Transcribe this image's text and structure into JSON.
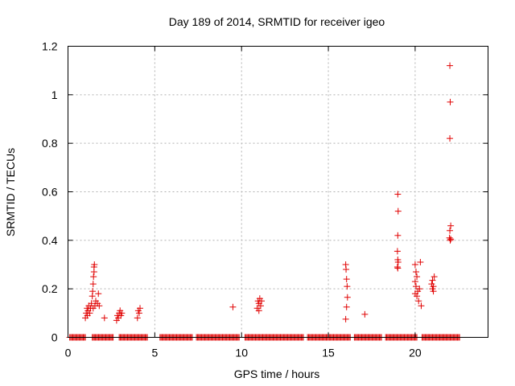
{
  "chart_data": {
    "type": "scatter",
    "title": "Day 189 of 2014, SRMTID for receiver igeo",
    "xlabel": "GPS time / hours",
    "ylabel": "SRMTID / TECUs",
    "xlim": [
      0,
      24.2
    ],
    "ylim": [
      0,
      1.2
    ],
    "xticks": [
      0,
      5,
      10,
      15,
      20
    ],
    "xtick_labels": [
      "0",
      "5",
      "10",
      "15",
      "20"
    ],
    "yticks": [
      0,
      0.2,
      0.4,
      0.6,
      0.8,
      1.0,
      1.2
    ],
    "ytick_labels": [
      "0",
      "0.2",
      "0.4",
      "0.6",
      "0.8",
      "1",
      "1.2"
    ],
    "grid": true,
    "marker": "+",
    "color": "#e00000",
    "series": [
      {
        "name": "SRMTID",
        "points": [
          [
            1.0,
            0.08
          ],
          [
            1.05,
            0.1
          ],
          [
            1.1,
            0.12
          ],
          [
            1.12,
            0.09
          ],
          [
            1.15,
            0.11
          ],
          [
            1.2,
            0.13
          ],
          [
            1.25,
            0.1
          ],
          [
            1.3,
            0.12
          ],
          [
            1.35,
            0.14
          ],
          [
            1.4,
            0.17
          ],
          [
            1.42,
            0.19
          ],
          [
            1.45,
            0.22
          ],
          [
            1.47,
            0.25
          ],
          [
            1.5,
            0.27
          ],
          [
            1.5,
            0.29
          ],
          [
            1.52,
            0.3
          ],
          [
            1.45,
            0.12
          ],
          [
            1.55,
            0.13
          ],
          [
            1.6,
            0.15
          ],
          [
            1.7,
            0.14
          ],
          [
            1.75,
            0.18
          ],
          [
            1.8,
            0.13
          ],
          [
            2.1,
            0.08
          ],
          [
            2.8,
            0.07
          ],
          [
            2.85,
            0.09
          ],
          [
            2.9,
            0.08
          ],
          [
            2.95,
            0.1
          ],
          [
            3.0,
            0.11
          ],
          [
            3.05,
            0.09
          ],
          [
            3.1,
            0.1
          ],
          [
            4.0,
            0.08
          ],
          [
            4.05,
            0.11
          ],
          [
            4.1,
            0.1
          ],
          [
            4.15,
            0.12
          ],
          [
            9.5,
            0.125
          ],
          [
            10.9,
            0.12
          ],
          [
            10.95,
            0.15
          ],
          [
            11.0,
            0.14
          ],
          [
            11.05,
            0.16
          ],
          [
            11.1,
            0.13
          ],
          [
            11.15,
            0.15
          ],
          [
            11.0,
            0.11
          ],
          [
            16.0,
            0.3
          ],
          [
            16.02,
            0.28
          ],
          [
            16.05,
            0.24
          ],
          [
            16.08,
            0.21
          ],
          [
            16.1,
            0.165
          ],
          [
            16.05,
            0.125
          ],
          [
            16.0,
            0.075
          ],
          [
            17.1,
            0.095
          ],
          [
            19.0,
            0.59
          ],
          [
            19.02,
            0.52
          ],
          [
            19.0,
            0.42
          ],
          [
            18.98,
            0.355
          ],
          [
            19.0,
            0.32
          ],
          [
            19.02,
            0.31
          ],
          [
            18.98,
            0.29
          ],
          [
            19.0,
            0.285
          ],
          [
            20.0,
            0.3
          ],
          [
            20.05,
            0.27
          ],
          [
            20.1,
            0.25
          ],
          [
            20.0,
            0.23
          ],
          [
            20.05,
            0.21
          ],
          [
            20.15,
            0.19
          ],
          [
            20.1,
            0.17
          ],
          [
            20.2,
            0.15
          ],
          [
            20.3,
            0.31
          ],
          [
            20.25,
            0.2
          ],
          [
            20.35,
            0.13
          ],
          [
            20.0,
            0.18
          ],
          [
            20.95,
            0.22
          ],
          [
            21.0,
            0.2
          ],
          [
            21.05,
            0.19
          ],
          [
            21.1,
            0.25
          ],
          [
            21.0,
            0.235
          ],
          [
            21.05,
            0.21
          ],
          [
            22.0,
            1.12
          ],
          [
            22.02,
            0.97
          ],
          [
            22.0,
            0.82
          ],
          [
            22.05,
            0.46
          ],
          [
            22.0,
            0.44
          ],
          [
            21.98,
            0.41
          ],
          [
            22.02,
            0.4
          ],
          [
            22.05,
            0.405
          ]
        ],
        "zero_runs": [
          [
            0.1,
            1.0
          ],
          [
            1.4,
            2.6
          ],
          [
            2.95,
            4.6
          ],
          [
            5.3,
            7.2
          ],
          [
            7.4,
            9.9
          ],
          [
            10.2,
            13.6
          ],
          [
            13.8,
            16.3
          ],
          [
            16.5,
            18.1
          ],
          [
            18.3,
            20.1
          ],
          [
            20.4,
            22.6
          ]
        ]
      }
    ]
  }
}
